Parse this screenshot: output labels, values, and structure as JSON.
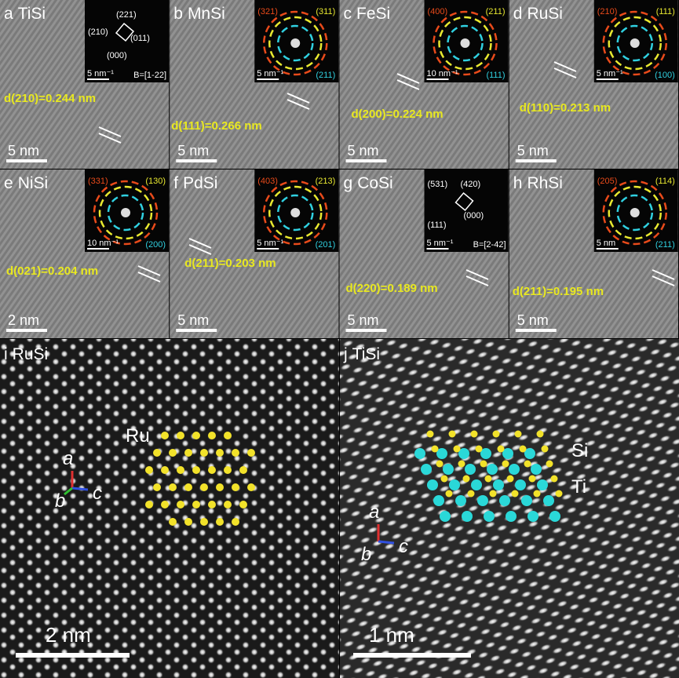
{
  "panels": [
    {
      "label": "a",
      "material": "TiSi",
      "spacing": "d(210)=0.244 nm",
      "scale_bar": "5 nm",
      "inset": {
        "spots": [
          "(221)",
          "(210)",
          "(011)",
          "(000)"
        ],
        "scale_bar": "5 nm⁻¹",
        "zone_axis": "B=[1-22]"
      }
    },
    {
      "label": "b",
      "material": "MnSi",
      "spacing": "d(111)=0.266 nm",
      "scale_bar": "5 nm",
      "inset": {
        "rings": [
          "(321)",
          "(311)",
          "(211)"
        ],
        "scale_bar": "5 nm⁻¹"
      }
    },
    {
      "label": "c",
      "material": "FeSi",
      "spacing": "d(200)=0.224 nm",
      "scale_bar": "5 nm",
      "inset": {
        "rings": [
          "(400)",
          "(211)",
          "(111)"
        ],
        "scale_bar": "10 nm⁻¹"
      }
    },
    {
      "label": "d",
      "material": "RuSi",
      "spacing": "d(110)=0.213 nm",
      "scale_bar": "5 nm",
      "inset": {
        "rings": [
          "(210)",
          "(111)",
          "(100)"
        ],
        "scale_bar": "5 nm⁻¹"
      }
    },
    {
      "label": "e",
      "material": "NiSi",
      "spacing": "d(021)=0.204 nm",
      "scale_bar": "2 nm",
      "inset": {
        "rings": [
          "(331)",
          "(130)",
          "(200)"
        ],
        "scale_bar": "10 nm⁻¹"
      }
    },
    {
      "label": "f",
      "material": "PdSi",
      "spacing": "d(211)=0.203 nm",
      "scale_bar": "5 nm",
      "inset": {
        "rings": [
          "(403)",
          "(213)",
          "(201)"
        ],
        "scale_bar": "5 nm⁻¹"
      }
    },
    {
      "label": "g",
      "material": "CoSi",
      "spacing": "d(220)=0.189 nm",
      "scale_bar": "5 nm",
      "inset": {
        "spots": [
          "(531)",
          "(420)",
          "(111)",
          "(000)"
        ],
        "scale_bar": "5 nm⁻¹",
        "zone_axis": "B=[2-42]"
      }
    },
    {
      "label": "h",
      "material": "RhSi",
      "spacing": "d(211)=0.195 nm",
      "scale_bar": "5 nm",
      "inset": {
        "rings": [
          "(205)",
          "(114)",
          "(211)"
        ],
        "scale_bar": "5 nm"
      }
    }
  ],
  "atomic_panels": [
    {
      "label": "i",
      "material": "RuSi",
      "scale_bar": "2 nm",
      "atoms": [
        "Ru"
      ],
      "axes": [
        "a",
        "b",
        "c"
      ]
    },
    {
      "label": "j",
      "material": "TiSi",
      "scale_bar": "1 nm",
      "atoms": [
        "Si",
        "Ti"
      ],
      "axes": [
        "a",
        "b",
        "c"
      ]
    }
  ]
}
